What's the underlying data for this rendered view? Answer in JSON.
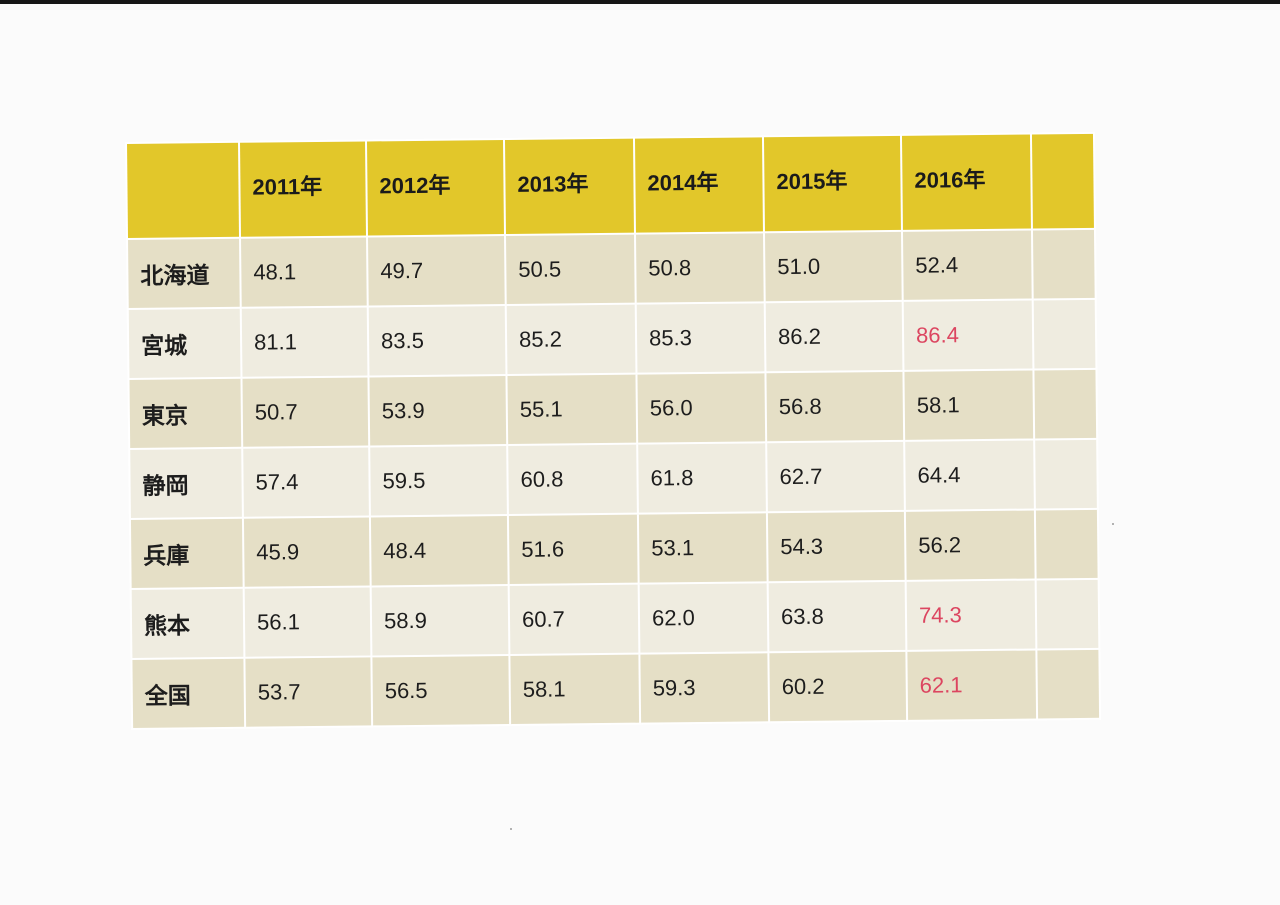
{
  "colors": {
    "header_bg": "#e2c72a",
    "row_dark": "#e5dfc6",
    "row_light": "#efece0",
    "highlight_text": "#dc4560"
  },
  "table": {
    "corner": "",
    "years": [
      "2011年",
      "2012年",
      "2013年",
      "2014年",
      "2015年",
      "2016年"
    ],
    "extra_header": "",
    "rows": [
      {
        "region": "北海道",
        "values": [
          "48.1",
          "49.7",
          "50.5",
          "50.8",
          "51.0",
          "52.4"
        ],
        "highlight_last": false
      },
      {
        "region": "宮城",
        "values": [
          "81.1",
          "83.5",
          "85.2",
          "85.3",
          "86.2",
          "86.4"
        ],
        "highlight_last": true
      },
      {
        "region": "東京",
        "values": [
          "50.7",
          "53.9",
          "55.1",
          "56.0",
          "56.8",
          "58.1"
        ],
        "highlight_last": false
      },
      {
        "region": "静岡",
        "values": [
          "57.4",
          "59.5",
          "60.8",
          "61.8",
          "62.7",
          "64.4"
        ],
        "highlight_last": false
      },
      {
        "region": "兵庫",
        "values": [
          "45.9",
          "48.4",
          "51.6",
          "53.1",
          "54.3",
          "56.2"
        ],
        "highlight_last": false
      },
      {
        "region": "熊本",
        "values": [
          "56.1",
          "58.9",
          "60.7",
          "62.0",
          "63.8",
          "74.3"
        ],
        "highlight_last": true
      },
      {
        "region": "全国",
        "values": [
          "53.7",
          "56.5",
          "58.1",
          "59.3",
          "60.2",
          "62.1"
        ],
        "highlight_last": true
      }
    ]
  }
}
